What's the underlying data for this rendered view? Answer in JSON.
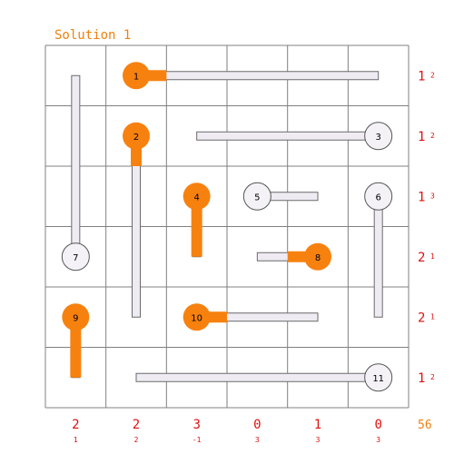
{
  "title": "Solution 1",
  "total": "56",
  "colors": {
    "orange": "#f7810f",
    "track": "#efebf3",
    "grid": "#808080",
    "clue": "#e01010",
    "title": "#f08010"
  },
  "grid": {
    "rows": 6,
    "cols": 6
  },
  "pieces": [
    {
      "id": "1",
      "row": 0,
      "col": 1,
      "dir": "right",
      "len": 4,
      "extended": 0.5,
      "filled": true
    },
    {
      "id": "2",
      "row": 1,
      "col": 1,
      "dir": "down",
      "len": 3,
      "extended": 0.5,
      "filled": true
    },
    {
      "id": "3",
      "row": 1,
      "col": 5,
      "dir": "left",
      "len": 3,
      "extended": 0,
      "filled": false
    },
    {
      "id": "4",
      "row": 2,
      "col": 2,
      "dir": "down",
      "len": 1,
      "extended": 1,
      "filled": true
    },
    {
      "id": "5",
      "row": 2,
      "col": 3,
      "dir": "right",
      "len": 1,
      "extended": 0,
      "filled": false
    },
    {
      "id": "6",
      "row": 2,
      "col": 5,
      "dir": "down",
      "len": 2,
      "extended": 0,
      "filled": false
    },
    {
      "id": "7",
      "row": 3,
      "col": 0,
      "dir": "up",
      "len": 3,
      "extended": 0,
      "filled": false
    },
    {
      "id": "8",
      "row": 3,
      "col": 4,
      "dir": "left",
      "len": 1,
      "extended": 0.5,
      "filled": true
    },
    {
      "id": "9",
      "row": 4,
      "col": 0,
      "dir": "down",
      "len": 1,
      "extended": 1,
      "filled": true
    },
    {
      "id": "10",
      "row": 4,
      "col": 2,
      "dir": "right",
      "len": 2,
      "extended": 0.5,
      "filled": true
    },
    {
      "id": "11",
      "row": 5,
      "col": 5,
      "dir": "left",
      "len": 4,
      "extended": 0,
      "filled": false
    }
  ],
  "row_clues": [
    {
      "big": "1",
      "small": "2"
    },
    {
      "big": "1",
      "small": "2"
    },
    {
      "big": "1",
      "small": "3"
    },
    {
      "big": "2",
      "small": "1"
    },
    {
      "big": "2",
      "small": "1"
    },
    {
      "big": "1",
      "small": "2"
    }
  ],
  "col_clues": [
    {
      "big": "2",
      "small": "1"
    },
    {
      "big": "2",
      "small": "2"
    },
    {
      "big": "3",
      "small": "-1"
    },
    {
      "big": "0",
      "small": "3"
    },
    {
      "big": "1",
      "small": "3"
    },
    {
      "big": "0",
      "small": "3"
    }
  ]
}
